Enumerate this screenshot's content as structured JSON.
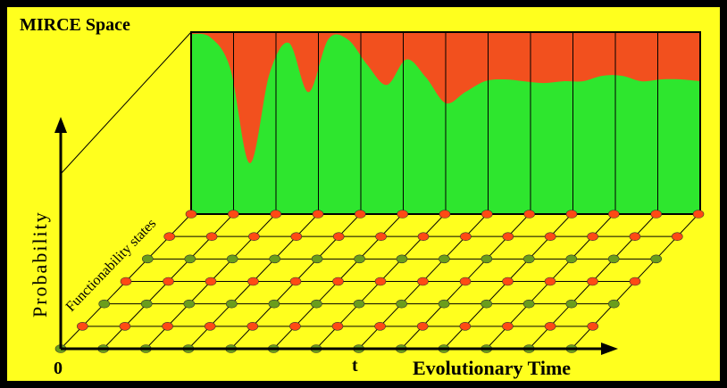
{
  "title": "MIRCE Space",
  "y_axis_label": "Probability",
  "x_axis_label": "Evolutionary Time",
  "origin_label": "0",
  "t_marker_label": "t",
  "depth_axis_label": "Functionability states",
  "colors": {
    "background": "#ffff1e",
    "frame": "#000000",
    "green_area": "#2ee62e",
    "red_area": "#f2501e",
    "red_node": "#ff4a14",
    "green_node": "#6a9d1c"
  },
  "grid": {
    "rows": 7,
    "columns": 13,
    "row_colors_from_front": [
      "green",
      "red",
      "green",
      "red",
      "green",
      "red",
      "red"
    ]
  },
  "probability_curve": [
    0.99,
    0.97,
    0.8,
    0.28,
    0.77,
    0.94,
    0.67,
    0.96,
    0.96,
    0.82,
    0.71,
    0.85,
    0.75,
    0.61,
    0.67,
    0.73,
    0.74,
    0.73,
    0.72,
    0.73,
    0.73,
    0.76,
    0.76,
    0.73,
    0.74,
    0.74,
    0.73
  ],
  "vertical_dividers": 12
}
